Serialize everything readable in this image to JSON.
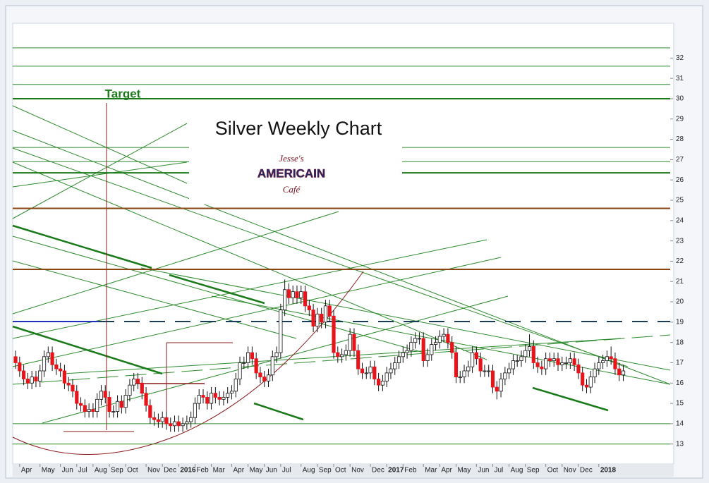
{
  "chart_data": {
    "type": "candlestick",
    "title": "Silver Weekly Chart",
    "annotation": "Target",
    "logo": [
      "Jesse's",
      "AMERICAIN",
      "Café"
    ],
    "up_color": "#ffffff",
    "down_color": "#e8141b",
    "ylim": [
      12.4,
      33.4
    ],
    "yticks": [
      13,
      14,
      15,
      16,
      17,
      18,
      19,
      20,
      21,
      22,
      23,
      24,
      25,
      26,
      27,
      28,
      29,
      30,
      31,
      32
    ],
    "xlim": [
      -0.7,
      160.5
    ],
    "xticks": [
      {
        "value": 1,
        "label": "Apr"
      },
      {
        "value": 6,
        "label": "May"
      },
      {
        "value": 11,
        "label": "Jun"
      },
      {
        "value": 15,
        "label": "Jul"
      },
      {
        "value": 19,
        "label": "Aug"
      },
      {
        "value": 23,
        "label": "Sep"
      },
      {
        "value": 27,
        "label": "Oct"
      },
      {
        "value": 32,
        "label": "Nov"
      },
      {
        "value": 36,
        "label": "Dec"
      },
      {
        "value": 40,
        "label": "2016"
      },
      {
        "value": 44,
        "label": "Feb"
      },
      {
        "value": 48,
        "label": "Mar"
      },
      {
        "value": 53,
        "label": "Apr"
      },
      {
        "value": 57,
        "label": "May"
      },
      {
        "value": 61,
        "label": "Jun"
      },
      {
        "value": 65,
        "label": "Jul"
      },
      {
        "value": 70,
        "label": "Aug"
      },
      {
        "value": 74,
        "label": "Sep"
      },
      {
        "value": 78,
        "label": "Oct"
      },
      {
        "value": 82,
        "label": "Nov"
      },
      {
        "value": 87,
        "label": "Dec"
      },
      {
        "value": 91,
        "label": "2017"
      },
      {
        "value": 95,
        "label": "Feb"
      },
      {
        "value": 100,
        "label": "Mar"
      },
      {
        "value": 104,
        "label": "Apr"
      },
      {
        "value": 108,
        "label": "May"
      },
      {
        "value": 113,
        "label": "Jun"
      },
      {
        "value": 117,
        "label": "Jul"
      },
      {
        "value": 121,
        "label": "Aug"
      },
      {
        "value": 125,
        "label": "Sep"
      },
      {
        "value": 130,
        "label": "Oct"
      },
      {
        "value": 134,
        "label": "Nov"
      },
      {
        "value": 138,
        "label": "Dec"
      },
      {
        "value": 143,
        "label": "2018"
      }
    ],
    "levels": [
      {
        "value": 32.5,
        "color": "#2e8b2e"
      },
      {
        "value": 31.6,
        "color": "#2e8b2e"
      },
      {
        "value": 30.7,
        "color": "#2e8b2e"
      },
      {
        "value": 30.0,
        "color": "#1a7a1a"
      },
      {
        "value": 27.6,
        "color": "#2e8b2e"
      },
      {
        "value": 26.9,
        "color": "#2e8b2e"
      },
      {
        "value": 26.35,
        "color": "#1a7a1a"
      },
      {
        "value": 24.6,
        "color": "#8b4513"
      },
      {
        "value": 21.6,
        "color": "#8b4513"
      },
      {
        "value": 14.0,
        "color": "#2e8b2e"
      },
      {
        "value": 13.0,
        "color": "#2e8b2e"
      }
    ],
    "open": [
      17.3,
      17.0,
      16.6,
      16.2,
      16.0,
      16.3,
      16.1,
      16.6,
      17.3,
      17.5,
      16.9,
      16.7,
      16.6,
      16.0,
      15.9,
      15.6,
      15.0,
      14.9,
      14.6,
      14.7,
      14.6,
      15.2,
      15.6,
      15.3,
      14.6,
      14.6,
      15.1,
      14.8,
      15.4,
      15.9,
      16.2,
      16.0,
      15.5,
      14.9,
      14.3,
      14.2,
      14.1,
      14.3,
      14.0,
      13.9,
      14.1,
      13.9,
      14.0,
      14.1,
      14.3,
      15.0,
      15.4,
      15.3,
      15.0,
      15.5,
      15.3,
      15.2,
      15.3,
      15.5,
      15.6,
      16.2,
      17.0,
      17.0,
      17.5,
      17.2,
      16.5,
      16.3,
      16.1,
      16.4,
      17.3,
      17.5,
      19.6,
      20.6,
      20.2,
      20.5,
      20.2,
      20.5,
      19.8,
      19.6,
      18.8,
      19.4,
      19.0,
      19.8,
      19.3,
      17.5,
      17.3,
      17.4,
      17.6,
      18.4,
      17.6,
      16.7,
      16.5,
      16.5,
      16.8,
      16.2,
      15.9,
      16.1,
      16.5,
      16.7,
      17.0,
      17.3,
      17.5,
      17.6,
      18.0,
      18.2,
      18.2,
      17.1,
      17.4,
      17.9,
      18.0,
      18.3,
      18.4,
      18.0,
      17.5,
      16.3,
      16.3,
      16.6,
      16.8,
      17.5,
      17.2,
      16.6,
      16.6,
      16.6,
      15.8,
      15.6,
      16.2,
      16.5,
      16.7,
      17.1,
      17.1,
      17.3,
      17.6,
      17.8,
      17.0,
      16.8,
      16.7,
      17.2,
      17.1,
      17.2,
      16.9,
      17.0,
      17.0,
      17.2,
      16.9,
      16.5,
      15.9,
      15.8,
      16.3,
      16.7,
      17.0,
      17.1,
      17.3,
      17.2,
      16.7,
      16.4
    ],
    "high": [
      17.6,
      17.3,
      16.9,
      16.5,
      16.6,
      16.6,
      16.9,
      17.6,
      17.8,
      17.8,
      17.2,
      17.0,
      16.9,
      16.3,
      16.2,
      15.9,
      15.3,
      15.2,
      15.0,
      15.0,
      15.5,
      15.9,
      15.9,
      15.6,
      14.9,
      15.4,
      15.4,
      15.7,
      16.2,
      16.5,
      16.5,
      16.3,
      15.8,
      15.2,
      14.6,
      14.5,
      14.6,
      14.6,
      14.3,
      14.4,
      14.4,
      14.3,
      14.4,
      14.6,
      15.3,
      15.7,
      15.7,
      15.6,
      15.8,
      15.8,
      15.6,
      15.6,
      15.8,
      15.9,
      16.5,
      17.3,
      17.3,
      17.8,
      17.8,
      17.5,
      16.8,
      16.6,
      16.7,
      17.6,
      17.8,
      19.9,
      21.1,
      20.9,
      20.8,
      20.8,
      20.8,
      20.8,
      20.1,
      19.9,
      19.7,
      19.7,
      20.1,
      20.1,
      19.6,
      17.8,
      17.7,
      17.9,
      18.7,
      18.7,
      17.9,
      17.0,
      16.8,
      17.1,
      17.1,
      16.5,
      16.4,
      16.8,
      17.0,
      17.3,
      17.6,
      17.8,
      17.9,
      18.3,
      18.5,
      18.5,
      18.5,
      17.7,
      18.2,
      18.3,
      18.6,
      18.7,
      18.7,
      18.3,
      17.8,
      16.6,
      16.9,
      17.1,
      17.8,
      17.8,
      17.5,
      16.9,
      16.9,
      16.9,
      16.1,
      16.5,
      16.8,
      17.0,
      17.4,
      17.4,
      17.6,
      17.9,
      18.4,
      18.1,
      17.3,
      17.1,
      17.5,
      17.5,
      17.5,
      17.5,
      17.3,
      17.3,
      17.5,
      17.5,
      17.2,
      16.8,
      16.2,
      16.6,
      17.0,
      17.3,
      17.4,
      17.6,
      17.8,
      17.5,
      17.0,
      16.9
    ],
    "low": [
      16.7,
      16.3,
      15.9,
      15.7,
      15.7,
      15.8,
      15.8,
      16.3,
      17.0,
      16.6,
      16.4,
      16.3,
      15.7,
      15.6,
      15.3,
      14.7,
      14.6,
      14.3,
      14.3,
      14.3,
      14.3,
      14.9,
      15.0,
      14.3,
      14.3,
      14.3,
      14.5,
      14.5,
      15.1,
      15.6,
      15.7,
      15.2,
      14.6,
      14.0,
      13.9,
      13.8,
      13.8,
      13.7,
      13.6,
      13.6,
      13.6,
      13.6,
      13.7,
      13.8,
      14.0,
      14.7,
      15.0,
      14.7,
      14.7,
      15.0,
      14.9,
      14.9,
      15.0,
      15.2,
      15.3,
      15.9,
      16.7,
      16.7,
      16.9,
      16.2,
      16.0,
      15.8,
      15.8,
      16.1,
      17.0,
      17.2,
      19.3,
      19.9,
      19.9,
      19.9,
      19.9,
      19.5,
      19.3,
      18.5,
      18.5,
      18.7,
      18.7,
      19.0,
      17.2,
      17.0,
      17.0,
      17.1,
      17.3,
      17.3,
      16.4,
      16.2,
      16.2,
      16.2,
      15.9,
      15.6,
      15.6,
      15.8,
      16.2,
      16.4,
      16.7,
      17.0,
      17.2,
      17.3,
      17.7,
      17.9,
      16.8,
      16.8,
      17.1,
      17.6,
      17.7,
      18.0,
      17.7,
      17.2,
      16.0,
      16.0,
      16.0,
      16.3,
      16.5,
      16.9,
      16.3,
      16.3,
      16.3,
      15.5,
      15.2,
      15.3,
      15.9,
      16.2,
      16.4,
      16.8,
      16.8,
      17.0,
      17.3,
      16.7,
      16.5,
      16.4,
      16.4,
      16.8,
      16.8,
      16.6,
      16.6,
      16.7,
      16.7,
      16.6,
      16.2,
      15.6,
      15.5,
      15.5,
      16.0,
      16.4,
      16.7,
      16.8,
      16.9,
      16.4,
      16.1,
      16.1
    ],
    "close": [
      17.0,
      16.6,
      16.2,
      16.0,
      16.3,
      16.1,
      16.6,
      17.3,
      17.5,
      16.9,
      16.7,
      16.6,
      16.0,
      15.9,
      15.6,
      15.0,
      14.9,
      14.6,
      14.7,
      14.6,
      15.2,
      15.6,
      15.3,
      14.6,
      14.6,
      15.1,
      14.8,
      15.4,
      15.9,
      16.2,
      16.0,
      15.5,
      14.9,
      14.3,
      14.2,
      14.1,
      14.3,
      14.0,
      13.9,
      14.1,
      13.9,
      14.0,
      14.1,
      14.3,
      15.0,
      15.4,
      15.3,
      15.0,
      15.5,
      15.3,
      15.2,
      15.3,
      15.5,
      15.6,
      16.2,
      17.0,
      17.0,
      17.5,
      17.2,
      16.5,
      16.3,
      16.1,
      16.4,
      17.3,
      17.5,
      19.6,
      20.6,
      20.2,
      20.5,
      20.2,
      20.5,
      19.8,
      19.6,
      18.8,
      19.4,
      19.0,
      19.8,
      19.3,
      17.5,
      17.3,
      17.4,
      17.6,
      18.4,
      17.6,
      16.7,
      16.5,
      16.5,
      16.8,
      16.2,
      15.9,
      16.1,
      16.5,
      16.7,
      17.0,
      17.3,
      17.5,
      17.6,
      18.0,
      18.2,
      18.2,
      17.1,
      17.4,
      17.9,
      18.0,
      18.3,
      18.4,
      18.0,
      17.5,
      16.3,
      16.3,
      16.6,
      16.8,
      17.5,
      17.2,
      16.6,
      16.6,
      16.6,
      15.8,
      15.6,
      16.2,
      16.5,
      16.7,
      17.1,
      17.1,
      17.3,
      17.6,
      17.8,
      17.0,
      16.8,
      16.7,
      17.2,
      17.1,
      17.2,
      16.9,
      17.0,
      17.0,
      17.2,
      16.9,
      16.5,
      15.9,
      15.8,
      16.3,
      16.7,
      17.0,
      17.1,
      17.3,
      17.2,
      16.7,
      16.4,
      16.6
    ]
  }
}
